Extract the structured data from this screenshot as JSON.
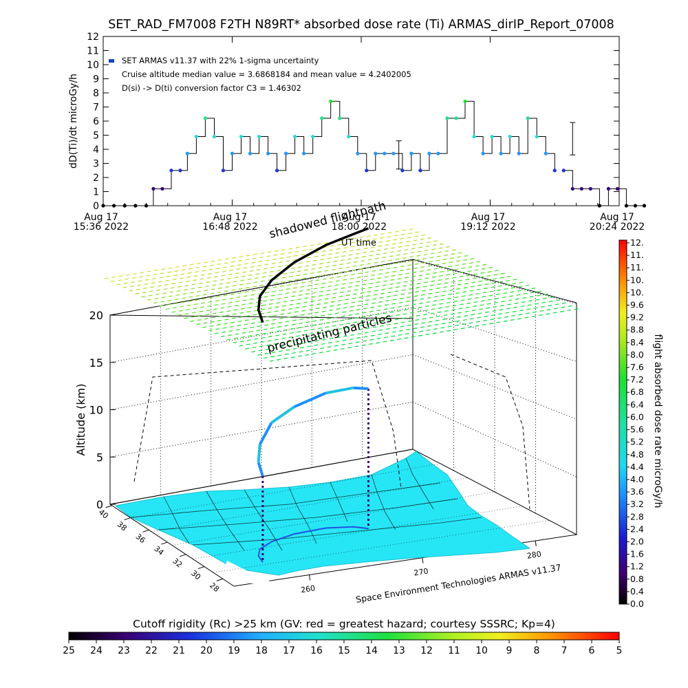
{
  "chart_data": [
    {
      "type": "scatter",
      "title": "SET_RAD_FM7008  F2TH N89RT* absorbed dose rate (Ti) ARMAS_dirIP_Report_07008",
      "ylabel": "dD(Ti)/dt microGy/h",
      "ylim": [
        0,
        12
      ],
      "y_ticks": [
        "0",
        "1",
        "2",
        "3",
        "4",
        "5",
        "6",
        "7",
        "8",
        "9",
        "10",
        "11",
        "12"
      ],
      "x_tick_labels": [
        {
          "date": "Aug 17",
          "time": "15:36 2022"
        },
        {
          "date": "Aug 17",
          "time": "16:48 2022"
        },
        {
          "date": "Aug 17",
          "time": "18:00 2022"
        },
        {
          "date": "Aug 17",
          "time": "19:12 2022"
        },
        {
          "date": "Aug 17",
          "time": "20:24 2022"
        }
      ],
      "xlim": [
        "15:36",
        "20:24"
      ],
      "xlabel": "UT time",
      "legend": {
        "series": "SET ARMAS v11.37 with 22% 1-sigma uncertainty",
        "median_mean": "Cruise altitude median value = 3.6868184 and mean value = 4.2402005",
        "conversion": "D(si) -> D(ti) conversion factor C3 = 1.46302"
      },
      "series": [
        {
          "x": [
            "15:36",
            "15:42",
            "15:48",
            "15:54",
            "16:00",
            "16:04",
            "16:09",
            "16:14",
            "16:19",
            "16:23",
            "16:28",
            "16:33",
            "16:38",
            "16:43",
            "16:48",
            "16:53",
            "16:58",
            "17:03",
            "17:08",
            "17:13",
            "17:18",
            "17:23",
            "17:28",
            "17:33",
            "17:38",
            "17:43",
            "17:48",
            "17:53",
            "17:58",
            "18:03",
            "18:08",
            "18:13",
            "18:18",
            "18:23",
            "18:28",
            "18:33",
            "18:38",
            "18:43",
            "18:48",
            "18:53",
            "18:58",
            "19:03",
            "19:08",
            "19:13",
            "19:18",
            "19:23",
            "19:28",
            "19:33",
            "19:38",
            "19:43",
            "19:48"
          ],
          "values": [
            0,
            0,
            0,
            0,
            0,
            1.2,
            1.2,
            2.5,
            2.5,
            3.7,
            4.9,
            6.2,
            4.9,
            2.5,
            3.7,
            4.9,
            3.7,
            4.9,
            3.7,
            2.5,
            3.7,
            4.9,
            3.7,
            4.9,
            6.2,
            7.4,
            6.2,
            4.9,
            3.7,
            2.5,
            3.7,
            3.7,
            3.7,
            2.5,
            3.7,
            2.5,
            3.7,
            3.7,
            6.2,
            6.2,
            7.4,
            4.9,
            3.7,
            4.9,
            3.7,
            4.9,
            3.7,
            6.2,
            4.9,
            3.7,
            2.5
          ]
        },
        {
          "x": [
            "19:53",
            "19:58",
            "20:03",
            "20:08",
            "20:13",
            "20:18",
            "20:23",
            "20:28",
            "20:33",
            "20:38"
          ],
          "values": [
            2.5,
            1.2,
            1.2,
            1.2,
            0,
            1.2,
            1.2,
            0,
            0,
            0
          ]
        }
      ],
      "error_bars": [
        {
          "x": "18:21",
          "low": 2.6,
          "high": 4.6
        },
        {
          "x": "19:58",
          "low": 3.6,
          "high": 5.9
        }
      ]
    },
    {
      "type": "scatter",
      "annotations": [
        "shadowed flightpath",
        "precipitating particles",
        "Space Environment Technologies ARMAS v11.37"
      ],
      "zlabel": "Altitude (km)",
      "z_ticks": [
        "0",
        "5",
        "10",
        "15",
        "20"
      ],
      "lat_ticks": [
        "40",
        "38",
        "36",
        "34",
        "32",
        "30",
        "28"
      ],
      "lon_ticks": [
        "260",
        "270",
        "280"
      ],
      "zlim": [
        0,
        20
      ],
      "flight_track": [
        {
          "lon": 255.5,
          "lat": 30.5,
          "alt": 8.8
        },
        {
          "lon": 256.0,
          "lat": 31.4,
          "alt": 9.5
        },
        {
          "lon": 257.0,
          "lat": 32.2,
          "alt": 10.6
        },
        {
          "lon": 259.0,
          "lat": 32.9,
          "alt": 11.9
        },
        {
          "lon": 262.0,
          "lat": 33.4,
          "alt": 12.5
        },
        {
          "lon": 265.5,
          "lat": 33.5,
          "alt": 13.0
        },
        {
          "lon": 268.0,
          "lat": 33.1,
          "alt": 13.2
        },
        {
          "lon": 269.0,
          "lat": 32.6,
          "alt": 13.2
        }
      ],
      "colorbar": {
        "label": "flight absorbed dose rate microGy/h",
        "ticks": [
          "0.0",
          "0.4",
          "0.8",
          "1.2",
          "1.6",
          "2.0",
          "2.4",
          "2.8",
          "3.2",
          "3.6",
          "4.0",
          "4.4",
          "4.8",
          "5.2",
          "5.6",
          "6.0",
          "6.4",
          "6.8",
          "7.2",
          "7.6",
          "8.0",
          "8.4",
          "8.8",
          "9.2",
          "9.6",
          "10.",
          "10.",
          "11.",
          "11.",
          "12."
        ]
      },
      "rigidity_colorbar": {
        "label": "Cutoff rigidity (Rc) >25 km (GV: red = greatest hazard; courtesy SSSRC; Kp=4)",
        "ticks": [
          "25",
          "24",
          "23",
          "22",
          "21",
          "20",
          "19",
          "18",
          "17",
          "16",
          "15",
          "14",
          "13",
          "12",
          "11",
          "10",
          "9",
          "8",
          "7",
          "6",
          "5"
        ]
      }
    }
  ]
}
